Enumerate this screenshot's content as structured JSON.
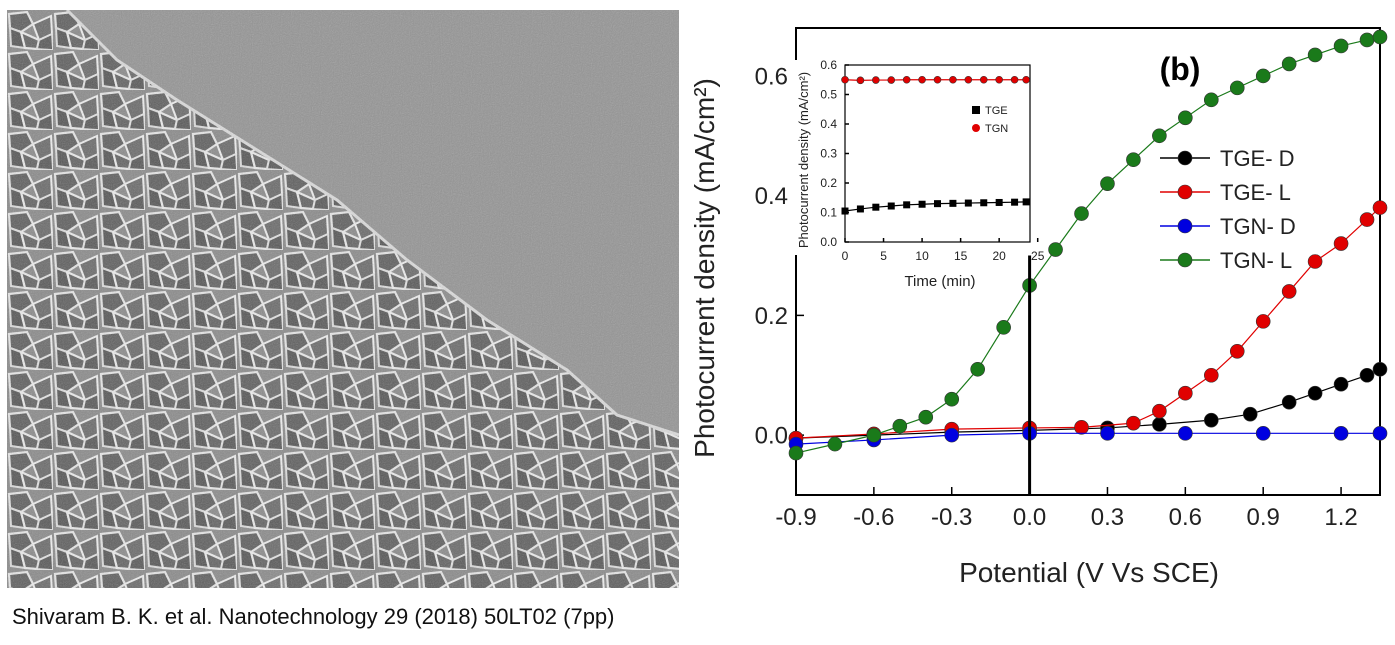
{
  "citation": "Shivaram B. K. et al. Nanotechnology 29 (2018) 50LT02 (7pp)",
  "image": {
    "description_icon": "sem-micrograph",
    "note": ""
  },
  "chart_data": [
    {
      "type": "scatter",
      "panel_label": "(b)",
      "xlabel": "Potential (V Vs SCE)",
      "ylabel": "Photocurrent density (mA/cm²)",
      "xlim": [
        -0.9,
        1.35
      ],
      "ylim": [
        -0.1,
        0.68
      ],
      "xticks": [
        "-0.9",
        "-0.6",
        "-0.3",
        "0.0",
        "0.3",
        "0.6",
        "0.9",
        "1.2"
      ],
      "xtick_values": [
        -0.9,
        -0.6,
        -0.3,
        0.0,
        0.3,
        0.6,
        0.9,
        1.2
      ],
      "yticks": [
        "0.0",
        "0.2",
        "0.4",
        "0.6"
      ],
      "ytick_values": [
        0.0,
        0.2,
        0.4,
        0.6
      ],
      "legend_position": "right",
      "series": [
        {
          "name": "TGE- D",
          "color": "#000000",
          "x": [
            -0.9,
            -0.6,
            -0.3,
            0.0,
            0.3,
            0.5,
            0.7,
            0.85,
            1.0,
            1.1,
            1.2,
            1.3,
            1.35
          ],
          "y": [
            -0.005,
            0.0,
            0.005,
            0.008,
            0.012,
            0.018,
            0.025,
            0.035,
            0.055,
            0.07,
            0.085,
            0.1,
            0.11
          ]
        },
        {
          "name": "TGE- L",
          "color": "#e00000",
          "x": [
            -0.9,
            -0.6,
            -0.3,
            0.0,
            0.2,
            0.4,
            0.5,
            0.6,
            0.7,
            0.8,
            0.9,
            1.0,
            1.1,
            1.2,
            1.3,
            1.35
          ],
          "y": [
            -0.005,
            0.002,
            0.01,
            0.012,
            0.013,
            0.02,
            0.04,
            0.07,
            0.1,
            0.14,
            0.19,
            0.24,
            0.29,
            0.32,
            0.36,
            0.38
          ]
        },
        {
          "name": "TGN- D",
          "color": "#0000e0",
          "x": [
            -0.9,
            -0.6,
            -0.3,
            0.0,
            0.3,
            0.6,
            0.9,
            1.2,
            1.35
          ],
          "y": [
            -0.015,
            -0.008,
            0.0,
            0.003,
            0.003,
            0.003,
            0.003,
            0.003,
            0.003
          ]
        },
        {
          "name": "TGN- L",
          "color": "#1a7a1a",
          "x": [
            -0.9,
            -0.75,
            -0.6,
            -0.5,
            -0.4,
            -0.3,
            -0.2,
            -0.1,
            0.0,
            0.1,
            0.2,
            0.3,
            0.4,
            0.5,
            0.6,
            0.7,
            0.8,
            0.9,
            1.0,
            1.1,
            1.2,
            1.3,
            1.35
          ],
          "y": [
            -0.03,
            -0.015,
            0.0,
            0.015,
            0.03,
            0.06,
            0.11,
            0.18,
            0.25,
            0.31,
            0.37,
            0.42,
            0.46,
            0.5,
            0.53,
            0.56,
            0.58,
            0.6,
            0.62,
            0.635,
            0.65,
            0.66,
            0.665
          ]
        }
      ]
    },
    {
      "type": "scatter",
      "panel_label": "inset",
      "xlabel": "Time (min)",
      "ylabel": "Photocurrent density (mA/cm²)",
      "xlim": [
        0,
        24
      ],
      "ylim": [
        0,
        0.6
      ],
      "xticks": [
        "0",
        "5",
        "10",
        "15",
        "20",
        "25"
      ],
      "xtick_values": [
        0,
        5,
        10,
        15,
        20,
        25
      ],
      "yticks": [
        "0.0",
        "0.1",
        "0.2",
        "0.3",
        "0.4",
        "0.5",
        "0.6"
      ],
      "ytick_values": [
        0.0,
        0.1,
        0.2,
        0.3,
        0.4,
        0.5,
        0.6
      ],
      "legend_position": "right",
      "series": [
        {
          "name": "TGE",
          "color": "#000000",
          "marker": "square",
          "x": [
            0,
            2,
            4,
            6,
            8,
            10,
            12,
            14,
            16,
            18,
            20,
            22,
            23.5
          ],
          "y": [
            0.105,
            0.112,
            0.118,
            0.122,
            0.126,
            0.128,
            0.13,
            0.131,
            0.132,
            0.133,
            0.134,
            0.135,
            0.136
          ]
        },
        {
          "name": "TGN",
          "color": "#e00000",
          "marker": "circle",
          "x": [
            0,
            2,
            4,
            6,
            8,
            10,
            12,
            14,
            16,
            18,
            20,
            22,
            23.5
          ],
          "y": [
            0.55,
            0.548,
            0.549,
            0.549,
            0.55,
            0.55,
            0.55,
            0.55,
            0.55,
            0.55,
            0.55,
            0.55,
            0.55
          ]
        }
      ]
    }
  ]
}
